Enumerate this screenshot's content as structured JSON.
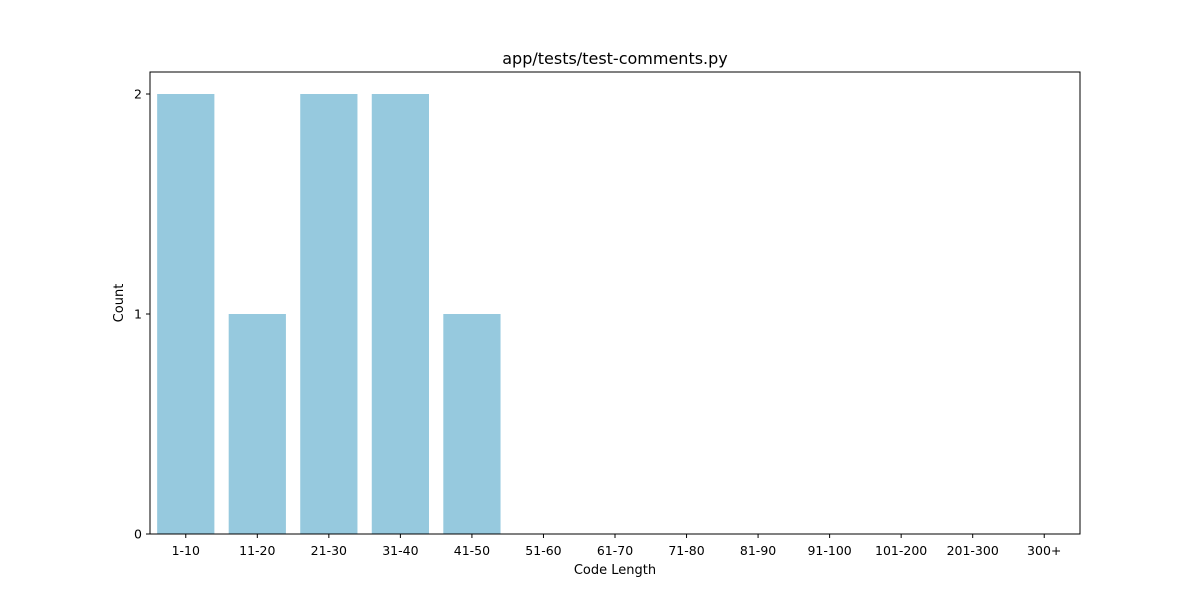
{
  "chart_data": {
    "type": "bar",
    "title": "app/tests/test-comments.py",
    "xlabel": "Code Length",
    "ylabel": "Count",
    "categories": [
      "1-10",
      "11-20",
      "21-30",
      "31-40",
      "41-50",
      "51-60",
      "61-70",
      "71-80",
      "81-90",
      "91-100",
      "101-200",
      "201-300",
      "300+"
    ],
    "values": [
      2,
      1,
      2,
      2,
      1,
      0,
      0,
      0,
      0,
      0,
      0,
      0,
      0
    ],
    "ylim": [
      0,
      2.1
    ],
    "yticks": [
      0,
      1,
      2
    ],
    "grid": false,
    "legend": "none",
    "bar_color": "#96c9de"
  }
}
